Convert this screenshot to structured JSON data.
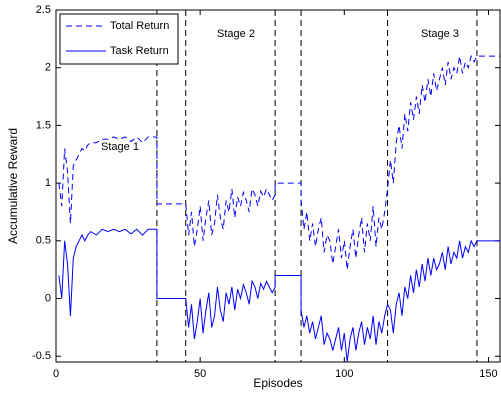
{
  "chart_data": {
    "type": "line",
    "xlabel": "Episodes",
    "ylabel": "Accumulative Reward",
    "x": [
      1,
      2,
      3,
      4,
      5,
      6,
      7,
      8,
      9,
      10,
      11,
      12,
      14,
      16,
      18,
      20,
      22,
      24,
      26,
      28,
      30,
      32,
      34,
      35,
      35,
      45,
      46,
      47,
      48,
      49,
      50,
      51,
      52,
      53,
      54,
      55,
      56,
      57,
      58,
      59,
      60,
      61,
      62,
      63,
      64,
      65,
      66,
      67,
      68,
      69,
      70,
      71,
      72,
      73,
      74,
      75,
      76,
      76,
      85,
      85,
      86,
      87,
      88,
      89,
      90,
      91,
      92,
      93,
      94,
      95,
      96,
      97,
      98,
      99,
      100,
      101,
      102,
      103,
      104,
      105,
      106,
      107,
      108,
      109,
      110,
      111,
      112,
      113,
      114,
      115,
      116,
      117,
      118,
      119,
      120,
      121,
      122,
      123,
      124,
      125,
      126,
      127,
      128,
      129,
      130,
      131,
      132,
      133,
      134,
      135,
      136,
      137,
      138,
      139,
      140,
      141,
      142,
      143,
      144,
      145,
      146,
      146,
      154
    ],
    "series": [
      {
        "name": "Total Return",
        "color": "#0000ff",
        "dash": true,
        "values": [
          1.0,
          0.8,
          1.3,
          1.1,
          0.65,
          1.15,
          1.2,
          1.25,
          1.3,
          1.28,
          1.33,
          1.35,
          1.35,
          1.38,
          1.38,
          1.4,
          1.38,
          1.4,
          1.36,
          1.4,
          1.35,
          1.4,
          1.4,
          1.4,
          0.82,
          0.82,
          0.55,
          0.75,
          0.45,
          0.6,
          0.8,
          0.5,
          0.7,
          0.85,
          0.55,
          0.65,
          0.9,
          0.7,
          0.6,
          0.85,
          0.75,
          0.95,
          0.7,
          0.88,
          0.8,
          0.92,
          0.85,
          0.75,
          0.95,
          0.9,
          0.8,
          0.93,
          0.88,
          0.95,
          0.9,
          0.85,
          0.9,
          1.0,
          1.0,
          0.85,
          0.6,
          0.75,
          0.5,
          0.65,
          0.45,
          0.6,
          0.7,
          0.4,
          0.55,
          0.5,
          0.3,
          0.45,
          0.6,
          0.35,
          0.5,
          0.25,
          0.45,
          0.6,
          0.35,
          0.55,
          0.7,
          0.4,
          0.65,
          0.5,
          0.8,
          0.45,
          0.7,
          0.6,
          0.75,
          0.95,
          1.2,
          1.0,
          1.35,
          1.5,
          1.3,
          1.6,
          1.45,
          1.7,
          1.55,
          1.75,
          1.6,
          1.85,
          1.7,
          1.9,
          1.75,
          1.95,
          1.8,
          1.9,
          2.0,
          1.85,
          2.05,
          1.9,
          2.0,
          1.95,
          2.1,
          1.95,
          2.05,
          2.0,
          2.1,
          2.05,
          2.1,
          2.1,
          2.1
        ]
      },
      {
        "name": "Task Return",
        "color": "#0000ff",
        "dash": false,
        "values": [
          0.2,
          0.0,
          0.5,
          0.3,
          -0.15,
          0.35,
          0.45,
          0.5,
          0.55,
          0.5,
          0.55,
          0.58,
          0.55,
          0.6,
          0.58,
          0.6,
          0.58,
          0.6,
          0.56,
          0.6,
          0.55,
          0.6,
          0.6,
          0.6,
          0,
          0,
          -0.25,
          -0.05,
          -0.35,
          -0.2,
          0.0,
          -0.3,
          -0.1,
          0.05,
          -0.25,
          -0.15,
          0.1,
          -0.1,
          -0.2,
          0.05,
          -0.05,
          0.1,
          -0.1,
          0.08,
          0.0,
          0.12,
          0.05,
          -0.05,
          0.15,
          0.1,
          0.0,
          0.13,
          0.08,
          0.15,
          0.1,
          0.05,
          0.1,
          0.2,
          0.2,
          -0.1,
          -0.25,
          -0.15,
          -0.3,
          -0.2,
          -0.35,
          -0.25,
          -0.15,
          -0.4,
          -0.3,
          -0.35,
          -0.45,
          -0.35,
          -0.25,
          -0.45,
          -0.3,
          -0.55,
          -0.35,
          -0.25,
          -0.45,
          -0.3,
          -0.2,
          -0.4,
          -0.25,
          -0.35,
          -0.15,
          -0.4,
          -0.2,
          -0.3,
          -0.15,
          -0.05,
          -0.1,
          -0.3,
          -0.05,
          0.05,
          -0.15,
          0.1,
          0.0,
          0.2,
          0.05,
          0.25,
          0.1,
          0.3,
          0.15,
          0.35,
          0.2,
          0.35,
          0.25,
          0.3,
          0.4,
          0.25,
          0.45,
          0.3,
          0.4,
          0.35,
          0.5,
          0.35,
          0.45,
          0.4,
          0.5,
          0.45,
          0.5,
          0.5,
          0.5
        ]
      }
    ],
    "vlines": [
      35,
      45,
      76,
      85,
      115,
      146
    ],
    "annotations": [
      "Stage 1",
      "Stage 2",
      "Stage 3"
    ],
    "xlim": [
      0,
      154
    ],
    "ylim": [
      -0.55,
      2.5
    ],
    "xticks": [
      0,
      50,
      100,
      150
    ],
    "yticks": [
      -0.5,
      0,
      0.5,
      1,
      1.5,
      2,
      2.5
    ],
    "legend": "upper left"
  }
}
